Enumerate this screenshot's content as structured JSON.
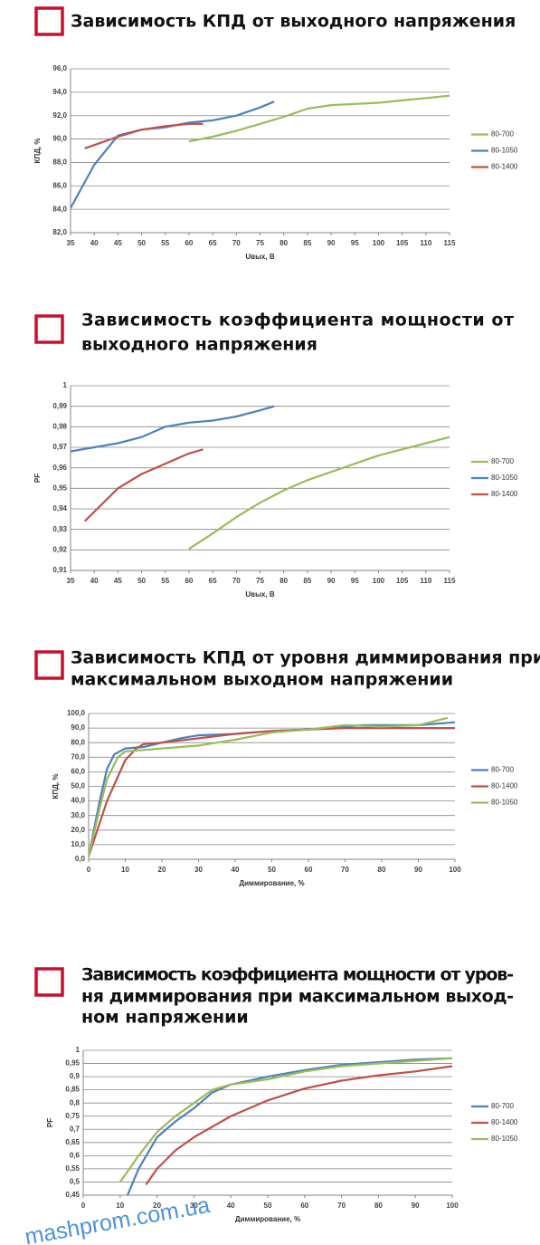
{
  "chart_data": [
    {
      "type": "line",
      "title": [
        "Зависимость КПД от выходного напряжения"
      ],
      "y_label": "КПД, %",
      "x_label": "Uвых, В",
      "xlim": [
        35,
        115
      ],
      "xticks": [
        35,
        40,
        45,
        50,
        55,
        60,
        65,
        70,
        75,
        80,
        85,
        90,
        95,
        100,
        105,
        110,
        115
      ],
      "ylim": [
        82,
        96
      ],
      "yticks": [
        {
          "value": 82,
          "label": "82,0"
        },
        {
          "value": 84,
          "label": "84,0"
        },
        {
          "value": 86,
          "label": "86,0"
        },
        {
          "value": 88,
          "label": "88,0"
        },
        {
          "value": 90,
          "label": "90,0"
        },
        {
          "value": 92,
          "label": "92,0"
        },
        {
          "value": 94,
          "label": "94,0"
        },
        {
          "value": 96,
          "label": "96,0"
        }
      ],
      "grid": true,
      "legend": "right",
      "series": [
        {
          "name": "80-700",
          "color": "#9bbb59",
          "x": [
            60,
            65,
            70,
            75,
            80,
            85,
            90,
            95,
            100,
            105,
            110,
            115
          ],
          "values": [
            89.8,
            90.2,
            90.7,
            91.3,
            91.9,
            92.6,
            92.9,
            93.0,
            93.1,
            93.3,
            93.5,
            93.7
          ]
        },
        {
          "name": "80-1050",
          "color": "#4f81bd",
          "x": [
            35,
            40,
            45,
            50,
            55,
            60,
            65,
            70,
            75,
            78
          ],
          "values": [
            84.1,
            87.8,
            90.3,
            90.8,
            91.0,
            91.4,
            91.6,
            92.0,
            92.7,
            93.2
          ]
        },
        {
          "name": "80-1400",
          "color": "#c0504d",
          "x": [
            38,
            45,
            50,
            55,
            60,
            63
          ],
          "values": [
            89.2,
            90.2,
            90.8,
            91.1,
            91.3,
            91.3
          ]
        }
      ]
    },
    {
      "type": "line",
      "title": [
        "Зависимость коэффициента мощности от",
        "выходного напряжения"
      ],
      "y_label": "PF",
      "x_label": "Uвых, В",
      "xlim": [
        35,
        115
      ],
      "xticks": [
        35,
        40,
        45,
        50,
        55,
        60,
        65,
        70,
        75,
        80,
        85,
        90,
        95,
        100,
        105,
        110,
        115
      ],
      "ylim": [
        0.91,
        1
      ],
      "yticks": [
        {
          "value": 0.91,
          "label": "0,91"
        },
        {
          "value": 0.92,
          "label": "0,92"
        },
        {
          "value": 0.93,
          "label": "0,93"
        },
        {
          "value": 0.94,
          "label": "0,94"
        },
        {
          "value": 0.95,
          "label": "0,95"
        },
        {
          "value": 0.96,
          "label": "0,96"
        },
        {
          "value": 0.97,
          "label": "0,97"
        },
        {
          "value": 0.98,
          "label": "0,98"
        },
        {
          "value": 0.99,
          "label": "0,99"
        },
        1
      ],
      "grid": true,
      "legend": "right",
      "series": [
        {
          "name": "80-700",
          "color": "#9bbb59",
          "x": [
            60,
            65,
            70,
            75,
            80,
            85,
            90,
            95,
            100,
            105,
            110,
            115
          ],
          "values": [
            0.9205,
            0.928,
            0.936,
            0.943,
            0.949,
            0.954,
            0.958,
            0.962,
            0.966,
            0.969,
            0.972,
            0.975
          ]
        },
        {
          "name": "80-1050",
          "color": "#4f81bd",
          "x": [
            35,
            40,
            45,
            50,
            55,
            60,
            65,
            70,
            75,
            78
          ],
          "values": [
            0.968,
            0.97,
            0.972,
            0.975,
            0.98,
            0.982,
            0.983,
            0.985,
            0.988,
            0.99
          ]
        },
        {
          "name": "80-1400",
          "color": "#c0504d",
          "x": [
            38,
            45,
            50,
            55,
            60,
            63
          ],
          "values": [
            0.934,
            0.95,
            0.957,
            0.962,
            0.967,
            0.969
          ]
        }
      ]
    },
    {
      "type": "line",
      "title": [
        "Зависимость КПД от уровня диммирования при",
        "максимальном выходном напряжении"
      ],
      "y_label": "КПД, %",
      "x_label": "Диммирование, %",
      "xlim": [
        0,
        100
      ],
      "xticks": [
        0,
        10,
        20,
        30,
        40,
        50,
        60,
        70,
        80,
        90,
        100
      ],
      "ylim": [
        0,
        100
      ],
      "yticks": [
        {
          "value": 0,
          "label": "0,0"
        },
        {
          "value": 10,
          "label": "10,0"
        },
        {
          "value": 20,
          "label": "20,0"
        },
        {
          "value": 30,
          "label": "30,0"
        },
        {
          "value": 40,
          "label": "40,0"
        },
        {
          "value": 50,
          "label": "50,0"
        },
        {
          "value": 60,
          "label": "60,0"
        },
        {
          "value": 70,
          "label": "70,0"
        },
        {
          "value": 80,
          "label": "80,0"
        },
        {
          "value": 90,
          "label": "90,0"
        },
        {
          "value": 100,
          "label": "100,0"
        }
      ],
      "grid": true,
      "legend": "right",
      "series": [
        {
          "name": "80-700",
          "color": "#4f81bd",
          "x": [
            0,
            3,
            5,
            7,
            10,
            15,
            20,
            25,
            30,
            40,
            50,
            60,
            70,
            75,
            80,
            90,
            100
          ],
          "values": [
            2,
            40,
            62,
            72,
            76,
            77,
            80,
            83,
            85,
            86,
            88,
            89,
            91,
            92,
            92,
            92,
            94
          ]
        },
        {
          "name": "80-1400",
          "color": "#c0504d",
          "x": [
            0,
            5,
            10,
            13,
            15,
            20,
            30,
            40,
            50,
            60,
            70,
            80,
            90,
            100
          ],
          "values": [
            2,
            40,
            68,
            76,
            79,
            80,
            83,
            86,
            88,
            89,
            90,
            90,
            90,
            90
          ]
        },
        {
          "name": "80-1050",
          "color": "#9bbb59",
          "x": [
            0,
            3,
            5,
            8,
            10,
            15,
            20,
            30,
            40,
            50,
            60,
            70,
            80,
            90,
            98
          ],
          "values": [
            2,
            35,
            55,
            70,
            74,
            75,
            76,
            78,
            82,
            87,
            89,
            92,
            91,
            92,
            97
          ]
        }
      ]
    },
    {
      "type": "line",
      "title": [
        "Зависимость коэффициента мощности от уров-",
        "ня диммирования при максимальном выход-",
        "ном напряжении"
      ],
      "y_label": "PF",
      "x_label": "Диммирование, %",
      "xlim": [
        0,
        100
      ],
      "xticks": [
        0,
        10,
        20,
        30,
        40,
        50,
        60,
        70,
        80,
        90,
        100
      ],
      "ylim": [
        0.45,
        1
      ],
      "yticks": [
        {
          "value": 0.45,
          "label": "0,45"
        },
        {
          "value": 0.5,
          "label": "0,5"
        },
        {
          "value": 0.55,
          "label": "0,55"
        },
        {
          "value": 0.6,
          "label": "0,6"
        },
        {
          "value": 0.65,
          "label": "0,65"
        },
        {
          "value": 0.7,
          "label": "0,7"
        },
        {
          "value": 0.75,
          "label": "0,75"
        },
        {
          "value": 0.8,
          "label": "0,8"
        },
        {
          "value": 0.85,
          "label": "0,85"
        },
        {
          "value": 0.9,
          "label": "0,9"
        },
        {
          "value": 0.95,
          "label": "0,95"
        },
        1
      ],
      "grid": true,
      "legend": "right",
      "series": [
        {
          "name": "80-700",
          "color": "#4f81bd",
          "x": [
            12,
            15,
            20,
            25,
            30,
            35,
            40,
            50,
            60,
            70,
            80,
            90,
            100
          ],
          "values": [
            0.45,
            0.55,
            0.67,
            0.73,
            0.78,
            0.84,
            0.87,
            0.9,
            0.925,
            0.945,
            0.955,
            0.965,
            0.97
          ]
        },
        {
          "name": "80-1400",
          "color": "#c0504d",
          "x": [
            17,
            20,
            25,
            30,
            40,
            50,
            60,
            70,
            80,
            90,
            100
          ],
          "values": [
            0.49,
            0.55,
            0.62,
            0.67,
            0.75,
            0.81,
            0.855,
            0.885,
            0.905,
            0.92,
            0.94
          ]
        },
        {
          "name": "80-1050",
          "color": "#9bbb59",
          "x": [
            10,
            15,
            20,
            25,
            30,
            35,
            40,
            50,
            60,
            70,
            80,
            90,
            100
          ],
          "values": [
            0.5,
            0.6,
            0.69,
            0.75,
            0.8,
            0.85,
            0.87,
            0.89,
            0.92,
            0.94,
            0.95,
            0.96,
            0.97
          ]
        }
      ]
    }
  ],
  "watermark": "mashprom.com.ua"
}
